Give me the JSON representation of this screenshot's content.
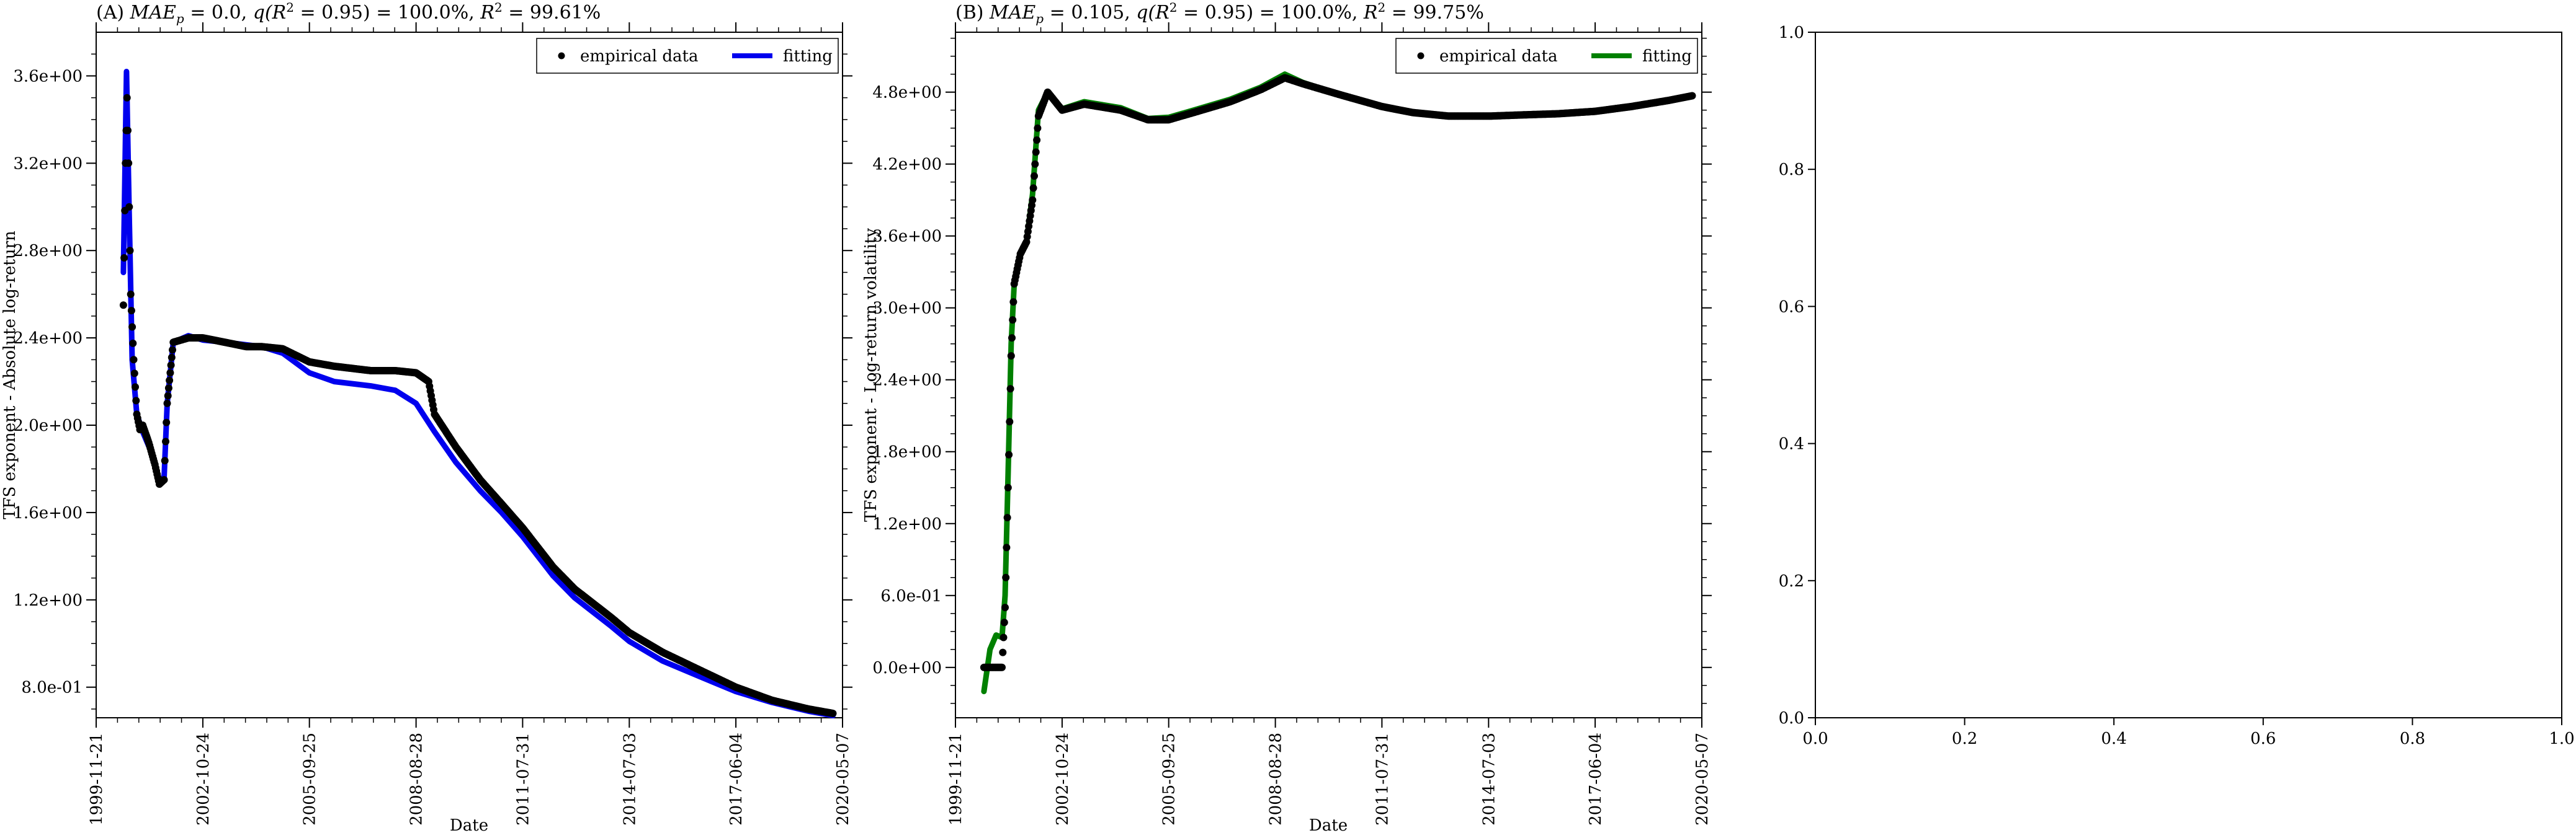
{
  "chart_data": [
    {
      "type": "line",
      "panel": "A",
      "title": "(A) MAE_p = 0.0, q(R^2 = 0.95) = 100.0%, R^2 = 99.61%",
      "title_parts": {
        "prefix": "(A) ",
        "mae_sym": "MAE",
        "mae_sub": "p",
        "mae_val": " = 0.0, ",
        "q_text": "q(R",
        "q_sup": "2",
        "q_val": " = 0.95) = 100.0%, ",
        "r2_sym": "R",
        "r2_sup": "2",
        "r2_val": " = 99.61%"
      },
      "xlabel": "Date",
      "ylabel": "TFS exponent - Absolute log-return",
      "x_ticks": [
        "1999-11-21",
        "2002-10-24",
        "2005-09-25",
        "2008-08-28",
        "2011-07-31",
        "2014-07-03",
        "2017-06-04",
        "2020-05-07"
      ],
      "y_ticks": [
        "8.0e-01",
        "1.2e+00",
        "1.6e+00",
        "2.0e+00",
        "2.4e+00",
        "2.8e+00",
        "3.2e+00",
        "3.6e+00"
      ],
      "y_tick_values": [
        0.8,
        1.2,
        1.6,
        2.0,
        2.4,
        2.8,
        3.2,
        3.6
      ],
      "xlim": [
        "1999-11-21",
        "2020-05-07"
      ],
      "ylim": [
        0.66,
        3.8
      ],
      "legend": {
        "placement": "top-right",
        "entries": [
          "empirical data",
          "fitting"
        ]
      },
      "series": [
        {
          "name": "empirical data",
          "style": "scatter",
          "color": "#000000",
          "points": [
            [
              "2000-08-20",
              2.55
            ],
            [
              "2000-09-10",
              3.2
            ],
            [
              "2000-09-25",
              3.5
            ],
            [
              "2000-10-10",
              3.2
            ],
            [
              "2000-11-01",
              2.6
            ],
            [
              "2000-12-01",
              2.3
            ],
            [
              "2001-01-01",
              2.05
            ],
            [
              "2001-02-01",
              1.98
            ],
            [
              "2001-03-01",
              2.0
            ],
            [
              "2001-05-01",
              1.92
            ],
            [
              "2001-07-01",
              1.82
            ],
            [
              "2001-08-15",
              1.73
            ],
            [
              "2001-10-01",
              1.75
            ],
            [
              "2001-11-01",
              2.1
            ],
            [
              "2002-01-01",
              2.38
            ],
            [
              "2002-06-01",
              2.4
            ],
            [
              "2002-10-24",
              2.4
            ],
            [
              "2003-06-01",
              2.38
            ],
            [
              "2004-01-01",
              2.36
            ],
            [
              "2004-06-01",
              2.36
            ],
            [
              "2005-01-01",
              2.35
            ],
            [
              "2005-09-25",
              2.29
            ],
            [
              "2006-06-01",
              2.27
            ],
            [
              "2007-06-01",
              2.25
            ],
            [
              "2008-02-01",
              2.25
            ],
            [
              "2008-08-28",
              2.24
            ],
            [
              "2009-01-01",
              2.2
            ],
            [
              "2009-03-01",
              2.05
            ],
            [
              "2009-10-01",
              1.9
            ],
            [
              "2010-06-01",
              1.75
            ],
            [
              "2011-01-01",
              1.64
            ],
            [
              "2011-07-31",
              1.53
            ],
            [
              "2012-06-01",
              1.35
            ],
            [
              "2013-01-01",
              1.25
            ],
            [
              "2014-01-01",
              1.12
            ],
            [
              "2014-07-03",
              1.05
            ],
            [
              "2015-06-01",
              0.96
            ],
            [
              "2016-06-01",
              0.88
            ],
            [
              "2017-06-04",
              0.8
            ],
            [
              "2018-06-01",
              0.74
            ],
            [
              "2019-06-01",
              0.7
            ],
            [
              "2020-02-01",
              0.68
            ]
          ]
        },
        {
          "name": "fitting",
          "style": "line",
          "color": "#0000ee",
          "points": [
            [
              "2000-08-20",
              2.7
            ],
            [
              "2000-09-20",
              3.62
            ],
            [
              "2000-10-15",
              3.0
            ],
            [
              "2000-11-15",
              2.3
            ],
            [
              "2001-01-01",
              2.05
            ],
            [
              "2001-03-01",
              1.97
            ],
            [
              "2001-06-01",
              1.87
            ],
            [
              "2001-08-15",
              1.73
            ],
            [
              "2001-10-01",
              1.76
            ],
            [
              "2001-11-01",
              2.1
            ],
            [
              "2002-01-01",
              2.38
            ],
            [
              "2002-06-01",
              2.41
            ],
            [
              "2002-10-24",
              2.39
            ],
            [
              "2003-06-01",
              2.38
            ],
            [
              "2004-06-01",
              2.36
            ],
            [
              "2005-01-01",
              2.33
            ],
            [
              "2005-09-25",
              2.24
            ],
            [
              "2006-06-01",
              2.2
            ],
            [
              "2007-06-01",
              2.18
            ],
            [
              "2008-02-01",
              2.16
            ],
            [
              "2008-08-28",
              2.1
            ],
            [
              "2009-03-01",
              1.97
            ],
            [
              "2009-10-01",
              1.83
            ],
            [
              "2010-06-01",
              1.7
            ],
            [
              "2011-01-01",
              1.6
            ],
            [
              "2011-07-31",
              1.49
            ],
            [
              "2012-06-01",
              1.31
            ],
            [
              "2013-01-01",
              1.21
            ],
            [
              "2014-01-01",
              1.08
            ],
            [
              "2014-07-03",
              1.01
            ],
            [
              "2015-06-01",
              0.92
            ],
            [
              "2016-06-01",
              0.85
            ],
            [
              "2017-06-04",
              0.78
            ],
            [
              "2018-06-01",
              0.73
            ],
            [
              "2019-06-01",
              0.69
            ],
            [
              "2020-02-01",
              0.67
            ]
          ]
        }
      ]
    },
    {
      "type": "line",
      "panel": "B",
      "title": "(B) MAE_p = 0.105, q(R^2 = 0.95) = 100.0%, R^2 = 99.75%",
      "title_parts": {
        "prefix": "(B) ",
        "mae_sym": "MAE",
        "mae_sub": "p",
        "mae_val": " = 0.105, ",
        "q_text": "q(R",
        "q_sup": "2",
        "q_val": " = 0.95) = 100.0%, ",
        "r2_sym": "R",
        "r2_sup": "2",
        "r2_val": " = 99.75%"
      },
      "xlabel": "Date",
      "ylabel": "TFS exponent - Log-return volatility",
      "x_ticks": [
        "1999-11-21",
        "2002-10-24",
        "2005-09-25",
        "2008-08-28",
        "2011-07-31",
        "2014-07-03",
        "2017-06-04",
        "2020-05-07"
      ],
      "y_ticks": [
        "0.0e+00",
        "6.0e-01",
        "1.2e+00",
        "1.8e+00",
        "2.4e+00",
        "3.0e+00",
        "3.6e+00",
        "4.2e+00",
        "4.8e+00"
      ],
      "y_tick_values": [
        0.0,
        0.6,
        1.2,
        1.8,
        2.4,
        3.0,
        3.6,
        4.2,
        4.8
      ],
      "xlim": [
        "1999-11-21",
        "2020-05-07"
      ],
      "ylim": [
        -0.42,
        5.3
      ],
      "legend": {
        "placement": "top-right",
        "entries": [
          "empirical data",
          "fitting"
        ]
      },
      "series": [
        {
          "name": "empirical data",
          "style": "scatter",
          "color": "#000000",
          "points": [
            [
              "2000-09-01",
              0.0
            ],
            [
              "2000-12-01",
              0.0
            ],
            [
              "2001-03-01",
              0.0
            ],
            [
              "2001-04-01",
              0.5
            ],
            [
              "2001-05-01",
              1.5
            ],
            [
              "2001-06-01",
              2.6
            ],
            [
              "2001-07-01",
              3.2
            ],
            [
              "2001-09-01",
              3.45
            ],
            [
              "2001-11-01",
              3.55
            ],
            [
              "2002-01-01",
              3.9
            ],
            [
              "2002-03-01",
              4.6
            ],
            [
              "2002-06-01",
              4.8
            ],
            [
              "2002-10-24",
              4.65
            ],
            [
              "2003-06-01",
              4.7
            ],
            [
              "2004-06-01",
              4.65
            ],
            [
              "2005-03-01",
              4.57
            ],
            [
              "2005-09-25",
              4.57
            ],
            [
              "2006-06-01",
              4.63
            ],
            [
              "2007-06-01",
              4.72
            ],
            [
              "2008-04-01",
              4.82
            ],
            [
              "2008-12-01",
              4.92
            ],
            [
              "2009-06-01",
              4.87
            ],
            [
              "2010-06-01",
              4.78
            ],
            [
              "2011-07-31",
              4.68
            ],
            [
              "2012-06-01",
              4.63
            ],
            [
              "2013-06-01",
              4.6
            ],
            [
              "2014-07-03",
              4.6
            ],
            [
              "2015-06-01",
              4.61
            ],
            [
              "2016-06-01",
              4.62
            ],
            [
              "2017-06-04",
              4.64
            ],
            [
              "2018-06-01",
              4.68
            ],
            [
              "2019-06-01",
              4.73
            ],
            [
              "2020-02-01",
              4.77
            ]
          ]
        },
        {
          "name": "fitting",
          "style": "line",
          "color": "#008000",
          "points": [
            [
              "2000-09-01",
              -0.2
            ],
            [
              "2000-11-01",
              0.15
            ],
            [
              "2001-01-01",
              0.27
            ],
            [
              "2001-03-01",
              0.25
            ],
            [
              "2001-04-01",
              0.6
            ],
            [
              "2001-05-01",
              1.6
            ],
            [
              "2001-06-01",
              2.7
            ],
            [
              "2001-07-01",
              3.2
            ],
            [
              "2001-09-01",
              3.45
            ],
            [
              "2001-11-01",
              3.55
            ],
            [
              "2002-01-01",
              3.95
            ],
            [
              "2002-03-01",
              4.65
            ],
            [
              "2002-06-01",
              4.8
            ],
            [
              "2002-10-24",
              4.66
            ],
            [
              "2003-06-01",
              4.72
            ],
            [
              "2004-06-01",
              4.67
            ],
            [
              "2005-03-01",
              4.58
            ],
            [
              "2005-09-25",
              4.59
            ],
            [
              "2006-06-01",
              4.65
            ],
            [
              "2007-06-01",
              4.74
            ],
            [
              "2008-04-01",
              4.84
            ],
            [
              "2008-12-01",
              4.95
            ],
            [
              "2009-06-01",
              4.88
            ],
            [
              "2010-06-01",
              4.78
            ],
            [
              "2011-07-31",
              4.68
            ],
            [
              "2012-06-01",
              4.63
            ],
            [
              "2013-06-01",
              4.6
            ],
            [
              "2014-07-03",
              4.6
            ],
            [
              "2015-06-01",
              4.61
            ],
            [
              "2016-06-01",
              4.62
            ],
            [
              "2017-06-04",
              4.64
            ],
            [
              "2018-06-01",
              4.68
            ],
            [
              "2019-06-01",
              4.73
            ],
            [
              "2020-02-01",
              4.77
            ]
          ]
        }
      ]
    },
    {
      "type": "line",
      "panel": "empty",
      "x_ticks": [
        "0.0",
        "0.2",
        "0.4",
        "0.6",
        "0.8",
        "1.0"
      ],
      "y_ticks": [
        "0.0",
        "0.2",
        "0.4",
        "0.6",
        "0.8",
        "1.0"
      ],
      "xlim": [
        0,
        1
      ],
      "ylim": [
        0,
        1
      ],
      "series": []
    }
  ]
}
